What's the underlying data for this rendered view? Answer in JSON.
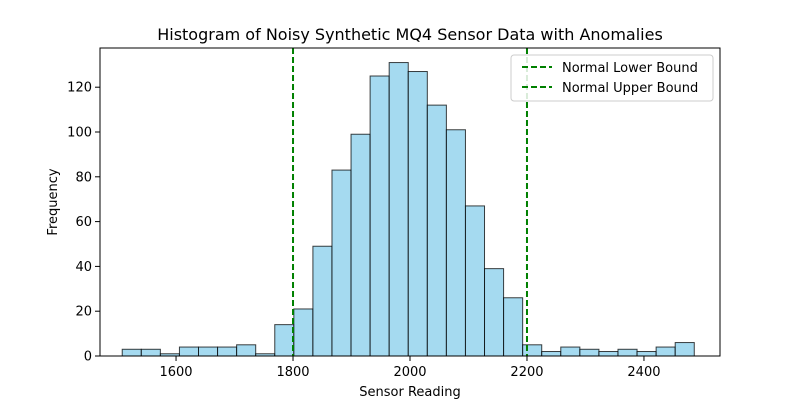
{
  "chart_data": {
    "type": "bar",
    "title": "Histogram of Noisy Synthetic MQ4 Sensor Data with Anomalies",
    "xlabel": "Sensor Reading",
    "ylabel": "Frequency",
    "xlim": [
      1470,
      2530
    ],
    "ylim": [
      0,
      137.5
    ],
    "xticks": [
      1600,
      1800,
      2000,
      2200,
      2400
    ],
    "yticks": [
      0,
      20,
      40,
      60,
      80,
      100,
      120
    ],
    "bin_start": 1508,
    "bin_width": 32.6,
    "frequencies": [
      3,
      3,
      1,
      4,
      4,
      4,
      5,
      1,
      14,
      21,
      49,
      83,
      99,
      125,
      131,
      127,
      112,
      101,
      67,
      39,
      26,
      5,
      2,
      4,
      3,
      2,
      3,
      2,
      4,
      6
    ],
    "bar_color": "#87CEEB",
    "bar_edge_color": "#000000",
    "reference_lines": [
      {
        "name": "Normal Lower Bound",
        "x": 1800,
        "color": "#008000",
        "style": "dashed"
      },
      {
        "name": "Normal Upper Bound",
        "x": 2200,
        "color": "#008000",
        "style": "dashed"
      }
    ],
    "legend_position": "top-right",
    "grid": false
  }
}
